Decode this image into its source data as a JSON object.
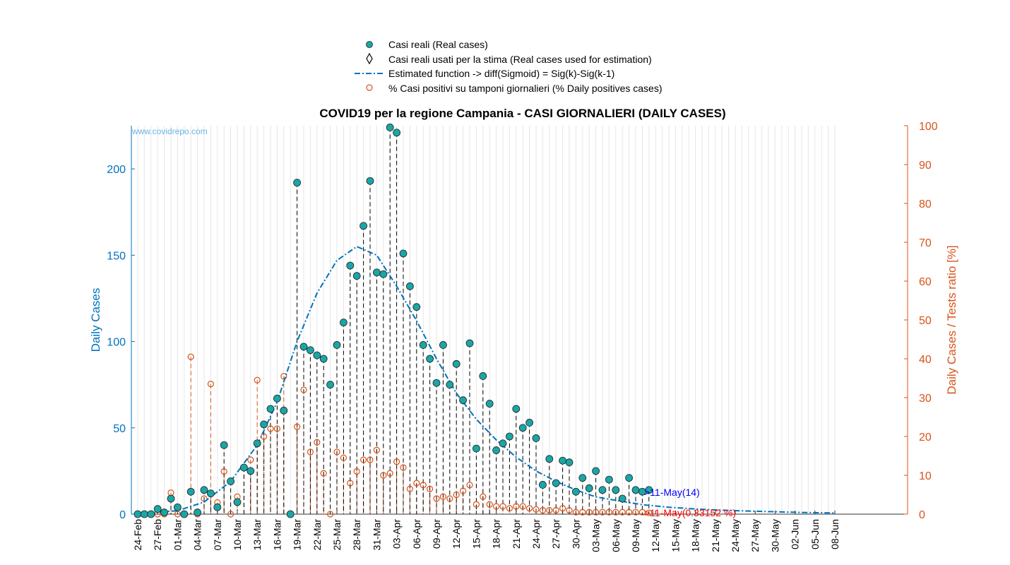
{
  "chart_data": {
    "type": "scatter",
    "title": "COVID19 per la regione Campania - CASI GIORNALIERI (DAILY CASES)",
    "watermark": "www.covidrepo.com",
    "xlabel": "",
    "ylabel_left": "Daily Cases",
    "ylabel_right": "Daily Cases / Tests ratio [%]",
    "ylim_left": [
      0,
      225
    ],
    "yticks_left": [
      0,
      50,
      100,
      150,
      200
    ],
    "ylim_right": [
      0,
      100
    ],
    "yticks_right": [
      0,
      10,
      20,
      30,
      40,
      50,
      60,
      70,
      80,
      90,
      100
    ],
    "grid": "vertical",
    "legend_position": "top-center",
    "colors": {
      "real": "#1aa6a6",
      "estimated": "#0072bd",
      "percent": "#d95319",
      "left_axis": "#0072bd",
      "right_axis": "#d95319",
      "annotation_cases": "#0000ff",
      "annotation_percent": "#ff0000"
    },
    "legend": [
      {
        "label": "Casi reali (Real cases)",
        "marker": "circle-filled"
      },
      {
        "label": "Casi reali usati per la stima (Real cases used for estimation)",
        "marker": "diamond"
      },
      {
        "label": "Estimated function -> diff(Sigmoid) = Sig(k)-Sig(k-1)",
        "marker": "dashdot-line"
      },
      {
        "label": "% Casi positivi su tamponi giornalieri (% Daily positives cases)",
        "marker": "circle-open"
      }
    ],
    "x_tick_labels": [
      "24-Feb",
      "27-Feb",
      "01-Mar",
      "04-Mar",
      "07-Mar",
      "10-Mar",
      "13-Mar",
      "16-Mar",
      "19-Mar",
      "22-Mar",
      "25-Mar",
      "28-Mar",
      "31-Mar",
      "03-Apr",
      "06-Apr",
      "09-Apr",
      "12-Apr",
      "15-Apr",
      "18-Apr",
      "21-Apr",
      "24-Apr",
      "27-Apr",
      "30-Apr",
      "03-May",
      "06-May",
      "09-May",
      "12-May",
      "15-May",
      "18-May",
      "21-May",
      "24-May",
      "27-May",
      "30-May",
      "02-Jun",
      "05-Jun",
      "08-Jun"
    ],
    "x_start": "24-Feb",
    "x_end": "08-Jun",
    "real_cases": [
      0,
      0,
      0,
      3,
      1,
      9,
      4,
      0,
      13,
      1,
      14,
      12,
      4,
      40,
      19,
      7,
      27,
      25,
      41,
      52,
      61,
      67,
      60,
      0,
      192,
      97,
      95,
      92,
      90,
      75,
      98,
      111,
      144,
      138,
      167,
      193,
      140,
      139,
      224,
      221,
      151,
      132,
      120,
      98,
      90,
      76,
      98,
      75,
      87,
      66,
      99,
      38,
      80,
      64,
      37,
      41,
      45,
      61,
      50,
      53,
      44,
      17,
      32,
      18,
      31,
      30,
      13,
      21,
      15,
      25,
      14,
      20,
      14,
      9,
      21,
      14,
      13,
      14
    ],
    "estimation_range": [
      "19-Mar",
      "25-Apr"
    ],
    "estimated_function": [
      [
        0,
        0.2
      ],
      [
        6,
        2
      ],
      [
        10,
        7
      ],
      [
        14,
        19
      ],
      [
        18,
        40
      ],
      [
        21,
        65
      ],
      [
        24,
        100
      ],
      [
        27,
        128
      ],
      [
        30,
        147
      ],
      [
        33,
        155
      ],
      [
        36,
        150
      ],
      [
        39,
        132
      ],
      [
        42,
        112
      ],
      [
        45,
        90
      ],
      [
        48,
        70
      ],
      [
        51,
        55
      ],
      [
        54,
        43
      ],
      [
        57,
        33
      ],
      [
        60,
        25
      ],
      [
        63,
        19
      ],
      [
        66,
        14
      ],
      [
        69,
        10
      ],
      [
        72,
        8
      ],
      [
        76,
        5.5
      ],
      [
        80,
        4
      ],
      [
        84,
        3
      ],
      [
        88,
        2.3
      ],
      [
        92,
        1.8
      ],
      [
        96,
        1.4
      ],
      [
        100,
        1.0
      ],
      [
        105,
        0.7
      ]
    ],
    "percent_positive": [
      0,
      0,
      0,
      0,
      0,
      5.5,
      0,
      0,
      40.5,
      0,
      4,
      33.5,
      3,
      11,
      0,
      4.5,
      12,
      14,
      34.5,
      20,
      22,
      22,
      35.5,
      0,
      22.5,
      32,
      16,
      18.5,
      10.5,
      0,
      16,
      14.5,
      8,
      11,
      14,
      14,
      16.5,
      10,
      10.5,
      13.5,
      12,
      6.5,
      8,
      7.5,
      6.5,
      4,
      4.5,
      4,
      5,
      6,
      7.5,
      2.5,
      4.5,
      2.5,
      2,
      2,
      1.5,
      2,
      2,
      1.5,
      1.2,
      1,
      1,
      1,
      1.5,
      1,
      0.5,
      0.5,
      0.5,
      0.5,
      0.5,
      0.5,
      0.5,
      0.5,
      0.5,
      0.5,
      0.5,
      0.33
    ],
    "annotations": [
      {
        "text": ">11-May(14)",
        "color": "#0000ff"
      },
      {
        "text": ">11-May(0.33152 %)",
        "color": "#ff0000"
      }
    ]
  }
}
